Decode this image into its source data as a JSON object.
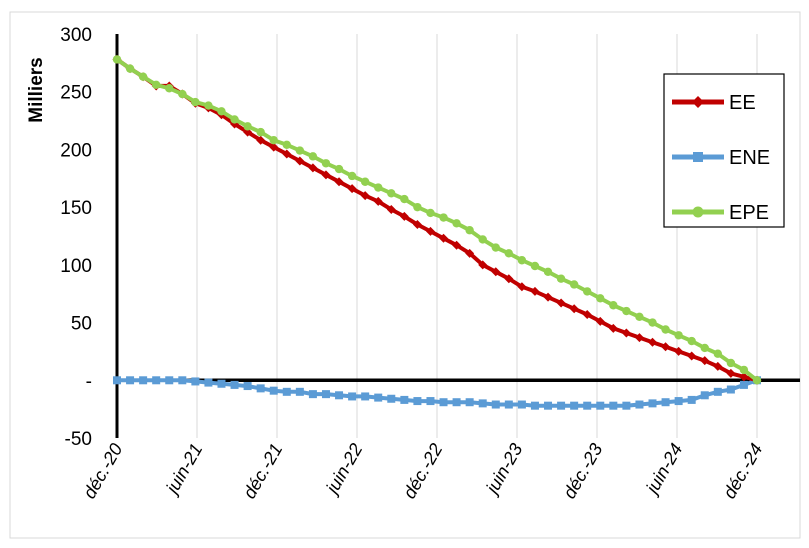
{
  "chart_data": {
    "type": "line",
    "title": "",
    "xlabel": "",
    "ylabel": "Milliers",
    "ylim": [
      -50,
      300
    ],
    "yticks": [
      {
        "value": 300,
        "label": "300"
      },
      {
        "value": 250,
        "label": "250"
      },
      {
        "value": 200,
        "label": "200"
      },
      {
        "value": 150,
        "label": "150"
      },
      {
        "value": 100,
        "label": "100"
      },
      {
        "value": 50,
        "label": "50"
      },
      {
        "value": 0,
        "label": "-"
      },
      {
        "value": -50,
        "label": "-50"
      }
    ],
    "x_labels": [
      "déc.-20",
      "juin-21",
      "déc.-21",
      "juin-22",
      "déc.-22",
      "juin-23",
      "déc.-23",
      "juin-24",
      "déc.-24"
    ],
    "grid": "vertical",
    "legend_position": "right",
    "series": [
      {
        "name": "EE",
        "color": "#c00000",
        "marker": "diamond",
        "values": [
          278,
          270,
          263,
          255,
          255,
          248,
          240,
          236,
          230,
          222,
          215,
          208,
          202,
          196,
          190,
          184,
          178,
          172,
          166,
          160,
          155,
          148,
          142,
          135,
          129,
          123,
          117,
          110,
          100,
          94,
          88,
          81,
          77,
          72,
          67,
          62,
          57,
          51,
          45,
          41,
          37,
          33,
          29,
          25,
          21,
          17,
          12,
          6,
          3,
          0
        ]
      },
      {
        "name": "ENE",
        "color": "#5b9bd5",
        "marker": "square",
        "values": [
          0,
          0,
          0,
          0,
          0,
          0,
          -1,
          -2,
          -3,
          -4,
          -5,
          -7,
          -9,
          -10,
          -10,
          -12,
          -12,
          -13,
          -14,
          -14,
          -15,
          -16,
          -17,
          -18,
          -18,
          -19,
          -19,
          -19,
          -20,
          -21,
          -21,
          -21,
          -22,
          -22,
          -22,
          -22,
          -22,
          -22,
          -22,
          -22,
          -21,
          -20,
          -19,
          -18,
          -17,
          -13,
          -10,
          -8,
          -4,
          0
        ]
      },
      {
        "name": "EPE",
        "color": "#92d050",
        "marker": "circle",
        "values": [
          278,
          270,
          263,
          256,
          253,
          248,
          241,
          238,
          233,
          226,
          220,
          215,
          208,
          204,
          199,
          194,
          188,
          183,
          177,
          172,
          167,
          162,
          157,
          150,
          145,
          141,
          136,
          130,
          122,
          115,
          110,
          104,
          99,
          94,
          88,
          83,
          77,
          71,
          65,
          60,
          55,
          50,
          44,
          39,
          34,
          28,
          23,
          15,
          9,
          0
        ]
      }
    ]
  }
}
